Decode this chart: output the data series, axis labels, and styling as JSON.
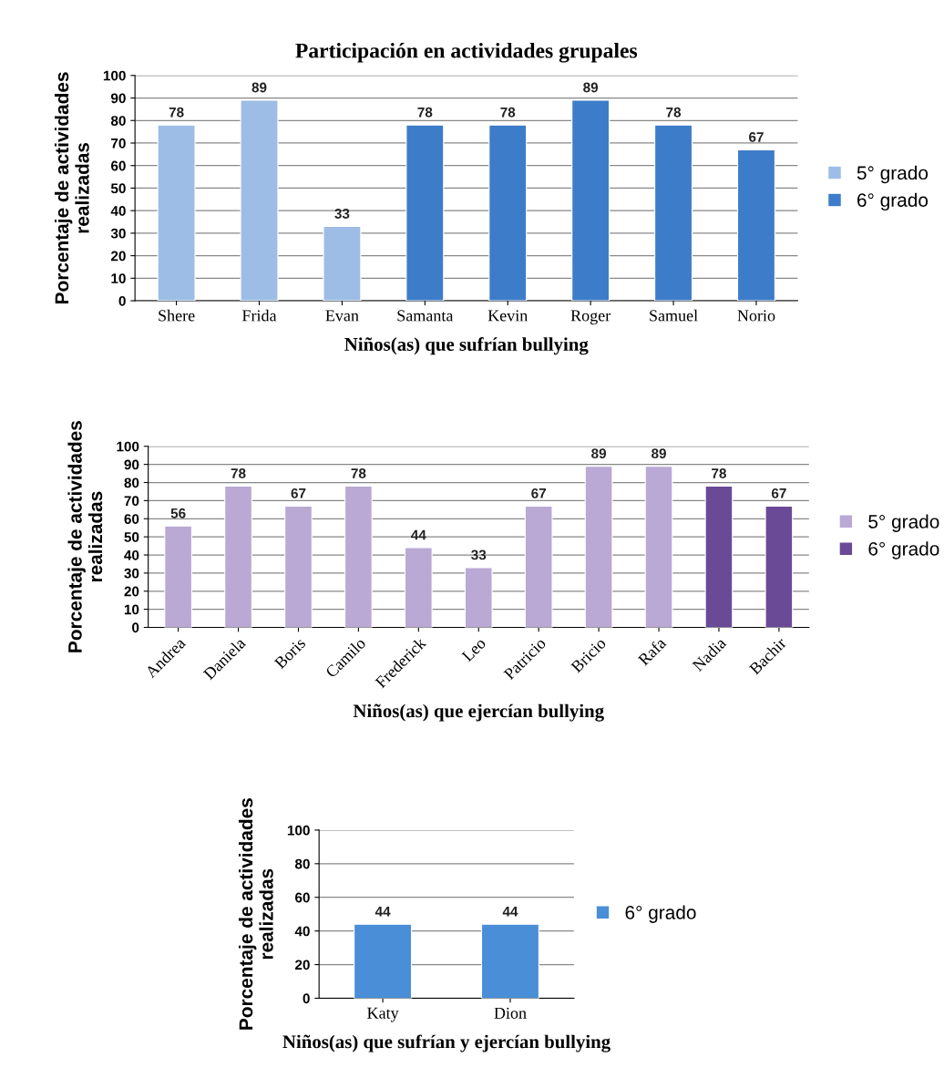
{
  "chart_data": [
    {
      "type": "bar",
      "title": "Participación en actividades grupales",
      "xlabel": "Niños(as) que sufrían bullying",
      "ylabel": "Porcentaje de actividades realizadas",
      "categories": [
        "Shere",
        "Frida",
        "Evan",
        "Samanta",
        "Kevin",
        "Roger",
        "Samuel",
        "Norio"
      ],
      "series": [
        {
          "name": "5° grado",
          "color": "#9dbde6",
          "values": [
            78,
            89,
            33,
            null,
            null,
            null,
            null,
            null
          ]
        },
        {
          "name": "6° grado",
          "color": "#3d7cc9",
          "values": [
            null,
            null,
            null,
            78,
            78,
            89,
            78,
            67
          ]
        }
      ],
      "stacked": true,
      "ylim": [
        0,
        100
      ],
      "yticks": [
        0,
        10,
        20,
        30,
        40,
        50,
        60,
        70,
        80,
        90,
        100
      ],
      "grid": "y",
      "legend": "right",
      "data_labels": true
    },
    {
      "type": "bar",
      "xlabel": "Niños(as) que ejercían bullying",
      "ylabel": "Porcentaje de actividades realizadas",
      "categories": [
        "Andrea",
        "Daniela",
        "Boris",
        "Camilo",
        "Frederick",
        "Leo",
        "Patricio",
        "Bricio",
        "Rafa",
        "Nadia",
        "Bachir"
      ],
      "series": [
        {
          "name": "5° grado",
          "color": "#b9a9d4",
          "values": [
            56,
            78,
            67,
            78,
            44,
            33,
            67,
            89,
            89,
            null,
            null
          ]
        },
        {
          "name": "6° grado",
          "color": "#6a4a96",
          "values": [
            null,
            null,
            null,
            null,
            null,
            null,
            null,
            null,
            null,
            78,
            67
          ]
        }
      ],
      "stacked": true,
      "ylim": [
        0,
        100
      ],
      "yticks": [
        0,
        10,
        20,
        30,
        40,
        50,
        60,
        70,
        80,
        90,
        100
      ],
      "grid": "y",
      "legend": "right",
      "data_labels": true
    },
    {
      "type": "bar",
      "xlabel": "Niños(as) que sufrían y ejercían bullying",
      "ylabel": "Porcentaje de actividades realizadas",
      "categories": [
        "Katy",
        "Dion"
      ],
      "series": [
        {
          "name": "6° grado",
          "color": "#4a8ed8",
          "values": [
            44,
            44
          ]
        }
      ],
      "stacked": true,
      "ylim": [
        0,
        100
      ],
      "yticks": [
        0,
        20,
        40,
        60,
        80,
        100
      ],
      "grid": "y",
      "legend": "right",
      "data_labels": true
    }
  ]
}
